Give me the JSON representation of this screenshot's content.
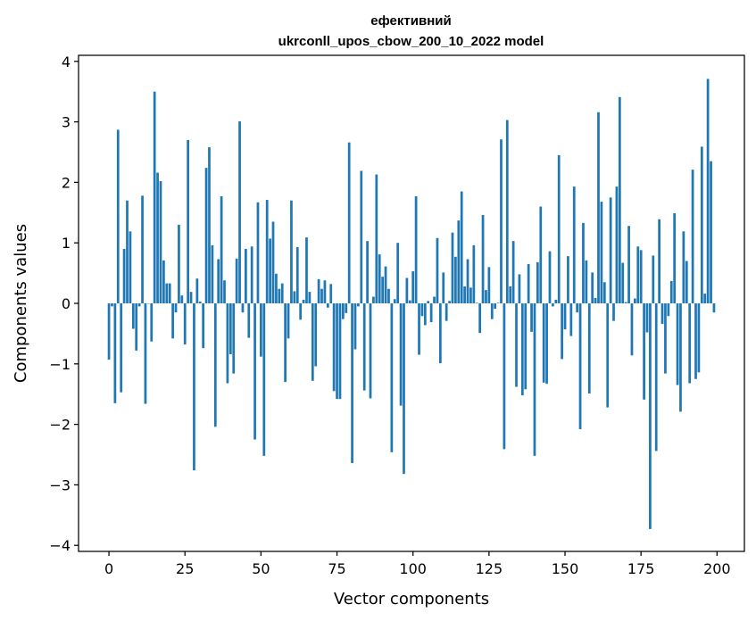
{
  "chart_data": {
    "type": "bar",
    "title": [
      "ефективний",
      "ukrconll_upos_cbow_200_10_2022 model"
    ],
    "xlabel": "Vector components",
    "ylabel": "Components values",
    "xlim": [
      -10,
      209
    ],
    "ylim": [
      -4.1,
      4.1
    ],
    "xticks": [
      0,
      25,
      50,
      75,
      100,
      125,
      150,
      175,
      200
    ],
    "yticks": [
      -4,
      -3,
      -2,
      -1,
      0,
      1,
      2,
      3,
      4
    ],
    "xtick_labels": [
      "0",
      "25",
      "50",
      "75",
      "100",
      "125",
      "150",
      "175",
      "200"
    ],
    "ytick_labels": [
      "−4",
      "−3",
      "−2",
      "−1",
      "0",
      "1",
      "2",
      "3",
      "4"
    ],
    "grid": false,
    "bar_color": "#1f77b4",
    "x": [
      0,
      1,
      2,
      3,
      4,
      5,
      6,
      7,
      8,
      9,
      10,
      11,
      12,
      13,
      14,
      15,
      16,
      17,
      18,
      19,
      20,
      21,
      22,
      23,
      24,
      25,
      26,
      27,
      28,
      29,
      30,
      31,
      32,
      33,
      34,
      35,
      36,
      37,
      38,
      39,
      40,
      41,
      42,
      43,
      44,
      45,
      46,
      47,
      48,
      49,
      50,
      51,
      52,
      53,
      54,
      55,
      56,
      57,
      58,
      59,
      60,
      61,
      62,
      63,
      64,
      65,
      66,
      67,
      68,
      69,
      70,
      71,
      72,
      73,
      74,
      75,
      76,
      77,
      78,
      79,
      80,
      81,
      82,
      83,
      84,
      85,
      86,
      87,
      88,
      89,
      90,
      91,
      92,
      93,
      94,
      95,
      96,
      97,
      98,
      99,
      100,
      101,
      102,
      103,
      104,
      105,
      106,
      107,
      108,
      109,
      110,
      111,
      112,
      113,
      114,
      115,
      116,
      117,
      118,
      119,
      120,
      121,
      122,
      123,
      124,
      125,
      126,
      127,
      128,
      129,
      130,
      131,
      132,
      133,
      134,
      135,
      136,
      137,
      138,
      139,
      140,
      141,
      142,
      143,
      144,
      145,
      146,
      147,
      148,
      149,
      150,
      151,
      152,
      153,
      154,
      155,
      156,
      157,
      158,
      159,
      160,
      161,
      162,
      163,
      164,
      165,
      166,
      167,
      168,
      169,
      170,
      171,
      172,
      173,
      174,
      175,
      176,
      177,
      178,
      179,
      180,
      181,
      182,
      183,
      184,
      185,
      186,
      187,
      188,
      189,
      190,
      191,
      192,
      193,
      194,
      195,
      196,
      197,
      198,
      199
    ],
    "values": [
      -0.93,
      -0.05,
      -1.65,
      2.87,
      -1.47,
      0.9,
      1.7,
      1.19,
      -0.42,
      -0.78,
      -0.05,
      1.78,
      -1.66,
      0.0,
      -0.63,
      3.5,
      2.16,
      2.02,
      0.71,
      0.33,
      0.33,
      -0.58,
      -0.15,
      1.3,
      0.13,
      -0.68,
      2.7,
      0.19,
      -2.76,
      0.41,
      0.03,
      -0.74,
      2.24,
      2.58,
      0.96,
      -2.04,
      0.73,
      1.77,
      0.38,
      -1.32,
      -0.84,
      -1.16,
      0.74,
      3.01,
      -0.15,
      0.9,
      -0.57,
      0.94,
      -2.25,
      1.67,
      -0.88,
      -2.52,
      1.71,
      1.07,
      1.35,
      0.49,
      0.24,
      0.33,
      -1.3,
      -0.58,
      1.7,
      0.2,
      0.93,
      -0.27,
      0.06,
      1.09,
      0.19,
      -1.28,
      -1.04,
      0.4,
      0.24,
      0.38,
      -0.07,
      0.32,
      -1.45,
      -1.58,
      -1.58,
      -0.26,
      -0.16,
      2.66,
      -2.64,
      -0.76,
      -0.05,
      2.19,
      -1.44,
      1.03,
      -1.57,
      0.11,
      2.13,
      0.81,
      0.44,
      0.61,
      0.24,
      -2.46,
      0.07,
      1.0,
      -1.69,
      -2.82,
      0.42,
      0.05,
      0.53,
      1.77,
      -0.85,
      -0.21,
      -0.36,
      0.04,
      -0.31,
      0.11,
      1.08,
      -0.99,
      0.51,
      -0.29,
      0.04,
      1.17,
      0.77,
      1.37,
      1.85,
      0.28,
      0.73,
      0.26,
      0.96,
      0.01,
      -0.49,
      1.46,
      0.22,
      0.6,
      -0.26,
      -0.09,
      0.01,
      2.71,
      -2.41,
      3.03,
      0.28,
      1.03,
      -1.38,
      0.48,
      -1.52,
      -1.42,
      0.65,
      -0.47,
      -2.52,
      0.68,
      1.6,
      -1.31,
      -1.33,
      0.86,
      -0.05,
      0.06,
      2.45,
      -0.92,
      -0.43,
      0.78,
      -0.54,
      1.93,
      -0.15,
      -2.08,
      1.33,
      0.71,
      -1.49,
      0.51,
      0.09,
      3.16,
      1.68,
      0.35,
      -1.72,
      1.75,
      -0.29,
      1.93,
      3.41,
      0.67,
      0.02,
      1.28,
      -0.86,
      0.08,
      0.94,
      0.88,
      -1.59,
      -0.48,
      -3.73,
      0.79,
      -2.44,
      1.39,
      -0.34,
      -1.16,
      -0.21,
      0.37,
      1.49,
      -1.35,
      -1.79,
      1.19,
      0.7,
      -1.32,
      2.21,
      -1.25,
      -1.14,
      2.59,
      0.16,
      3.71,
      2.35,
      -0.15
    ]
  }
}
